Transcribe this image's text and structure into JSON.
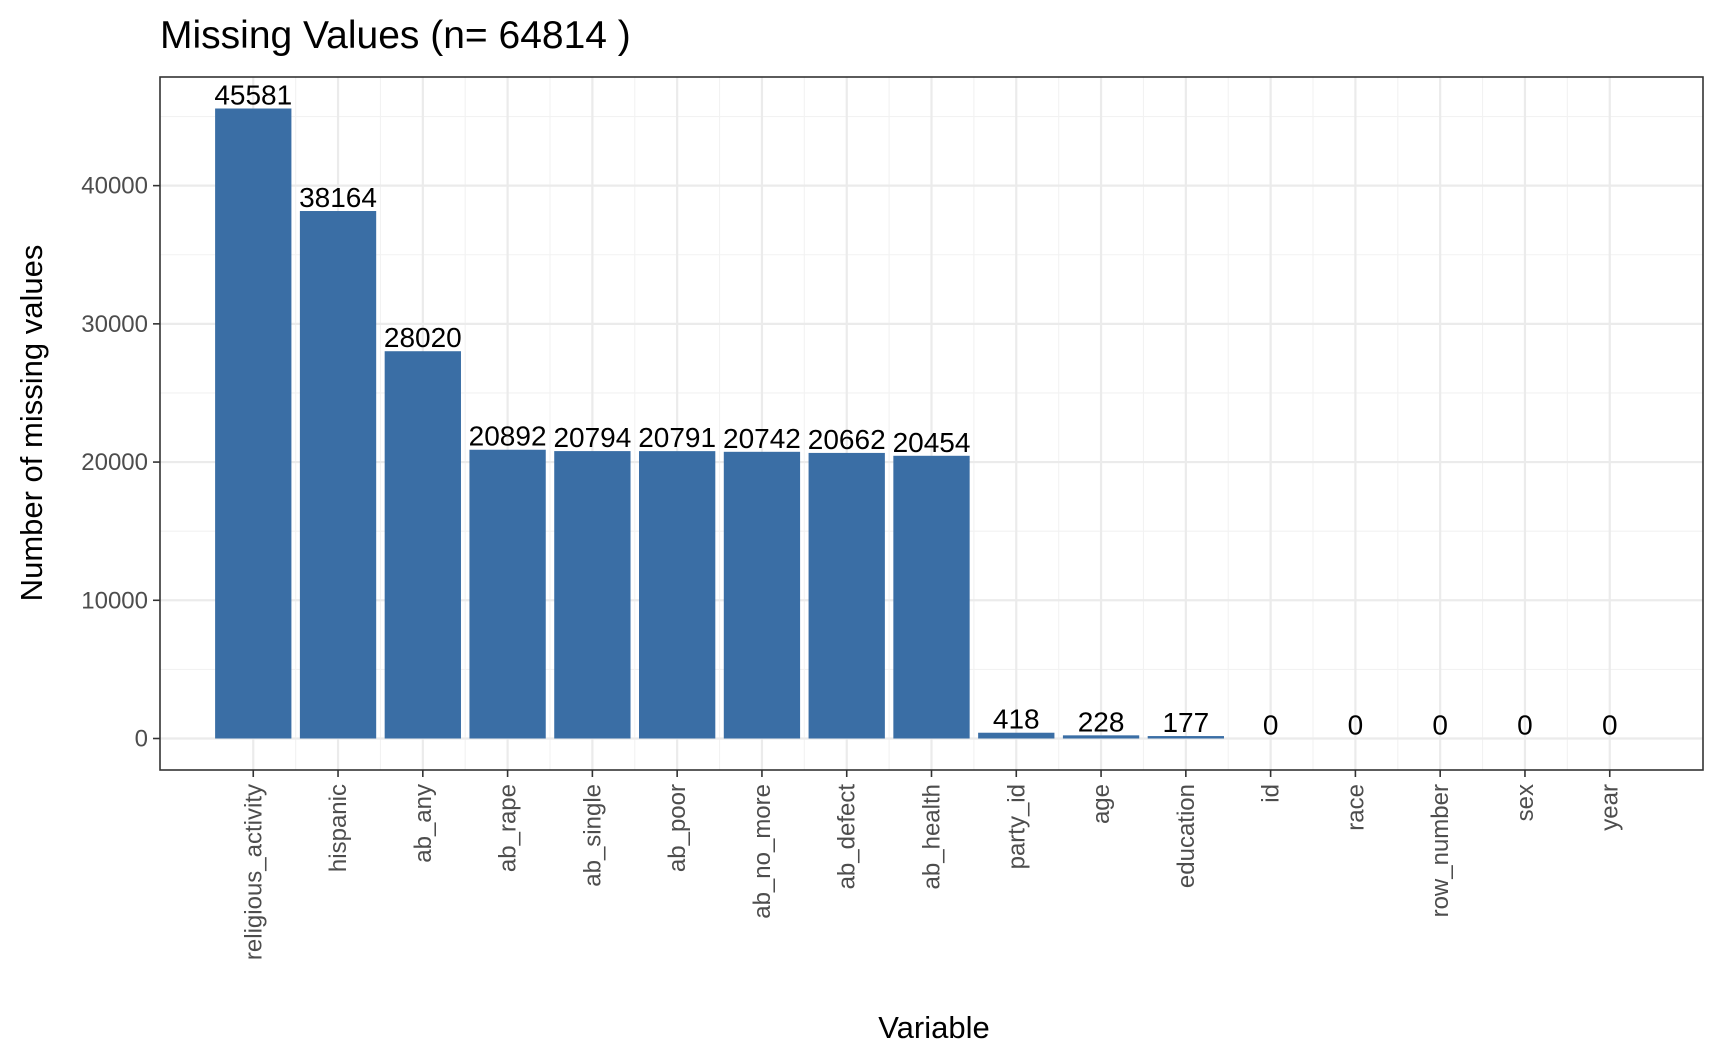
{
  "chart_data": {
    "type": "bar",
    "title": "Missing Values (n= 64814 )",
    "xlabel": "Variable",
    "ylabel": "Number of missing values",
    "categories": [
      "religious_activity",
      "hispanic",
      "ab_any",
      "ab_rape",
      "ab_single",
      "ab_poor",
      "ab_no_more",
      "ab_defect",
      "ab_health",
      "party_id",
      "age",
      "education",
      "id",
      "race",
      "row_number",
      "sex",
      "year"
    ],
    "values": [
      45581,
      38164,
      28020,
      20892,
      20794,
      20791,
      20742,
      20662,
      20454,
      418,
      228,
      177,
      0,
      0,
      0,
      0,
      0
    ],
    "yticks": [
      0,
      10000,
      20000,
      30000,
      40000
    ],
    "ylim": [
      -2279,
      47860
    ],
    "grid": true,
    "bar_color": "#3a6ea5",
    "show_value_labels": true
  }
}
